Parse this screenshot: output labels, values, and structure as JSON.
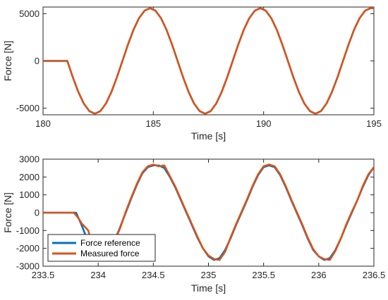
{
  "chart_data": [
    {
      "type": "line",
      "xlabel": "Time [s]",
      "ylabel": "Force [N]",
      "xlim": [
        180,
        195
      ],
      "ylim": [
        -5700,
        5700
      ],
      "xticks": [
        "180",
        "185",
        "190",
        "195"
      ],
      "yticks": [
        "-5000",
        "0",
        "5000"
      ],
      "grid": false,
      "legend": null,
      "series": [
        {
          "name": "Force reference",
          "color": "#0072BD",
          "x": [
            180.0,
            181.0,
            181.1,
            181.35,
            181.6,
            181.85,
            182.1,
            182.35,
            182.6,
            182.85,
            183.1,
            183.35,
            183.6,
            183.85,
            184.1,
            184.35,
            184.6,
            184.85,
            185.1,
            185.35,
            185.6,
            185.85,
            186.1,
            186.35,
            186.6,
            186.85,
            187.1,
            187.35,
            187.6,
            187.85,
            188.1,
            188.35,
            188.6,
            188.85,
            189.1,
            189.35,
            189.6,
            189.85,
            190.1,
            190.35,
            190.6,
            190.85,
            191.1,
            191.35,
            191.6,
            191.85,
            192.1,
            192.35,
            192.6,
            192.85,
            193.1,
            193.35,
            193.6,
            193.85,
            194.1,
            194.35,
            194.6,
            194.85,
            195.0
          ],
          "y": [
            0,
            0,
            0,
            -1726,
            -3283,
            -4519,
            -5312,
            -5586,
            -5312,
            -4519,
            -3283,
            -1726,
            0,
            1726,
            3283,
            4519,
            5312,
            5586,
            5312,
            4519,
            3283,
            1726,
            0,
            -1726,
            -3283,
            -4519,
            -5312,
            -5586,
            -5312,
            -4519,
            -3283,
            -1726,
            0,
            1726,
            3283,
            4519,
            5312,
            5586,
            5312,
            4519,
            3283,
            1726,
            0,
            -1726,
            -3283,
            -4519,
            -5312,
            -5586,
            -5312,
            -4519,
            -3283,
            -1726,
            0,
            1726,
            3283,
            4519,
            5312,
            5586,
            5586
          ]
        },
        {
          "name": "Measured force",
          "color": "#D95319",
          "x": [
            180.0,
            181.0,
            181.1,
            181.35,
            181.6,
            181.85,
            182.1,
            182.35,
            182.6,
            182.85,
            183.1,
            183.35,
            183.6,
            183.85,
            184.1,
            184.35,
            184.6,
            184.85,
            185.1,
            185.35,
            185.6,
            185.85,
            186.1,
            186.35,
            186.6,
            186.85,
            187.1,
            187.35,
            187.6,
            187.85,
            188.1,
            188.35,
            188.6,
            188.85,
            189.1,
            189.35,
            189.6,
            189.85,
            190.1,
            190.35,
            190.6,
            190.85,
            191.1,
            191.35,
            191.6,
            191.85,
            192.1,
            192.35,
            192.6,
            192.85,
            193.1,
            193.35,
            193.6,
            193.85,
            194.1,
            194.35,
            194.6,
            194.85,
            195.0
          ],
          "y": [
            0,
            0,
            0,
            -1726,
            -3283,
            -4519,
            -5312,
            -5586,
            -5312,
            -4519,
            -3283,
            -1726,
            0,
            1726,
            3283,
            4519,
            5312,
            5586,
            5312,
            4519,
            3283,
            1726,
            0,
            -1726,
            -3283,
            -4519,
            -5312,
            -5586,
            -5312,
            -4519,
            -3283,
            -1726,
            0,
            1726,
            3283,
            4519,
            5312,
            5586,
            5312,
            4519,
            3283,
            1726,
            0,
            -1726,
            -3283,
            -4519,
            -5312,
            -5586,
            -5312,
            -4519,
            -3283,
            -1726,
            0,
            1726,
            3283,
            4519,
            5312,
            5586,
            5586
          ]
        }
      ]
    },
    {
      "type": "line",
      "xlabel": "Time [s]",
      "ylabel": "Force [N]",
      "xlim": [
        233.5,
        236.5
      ],
      "ylim": [
        -3000,
        3000
      ],
      "xticks": [
        "233.5",
        "234",
        "234.5",
        "235",
        "235.5",
        "236",
        "236.5"
      ],
      "yticks": [
        "-3000",
        "-2000",
        "-1000",
        "0",
        "1000",
        "2000",
        "3000"
      ],
      "grid": false,
      "legend": "bottom-left",
      "series": [
        {
          "name": "Force reference",
          "color": "#0072BD",
          "x": [
            233.5,
            233.8,
            233.85,
            233.9,
            233.95,
            234.0,
            234.05,
            234.1,
            234.15,
            234.2,
            234.25,
            234.3,
            234.35,
            234.4,
            234.45,
            234.5,
            234.55,
            234.6,
            234.65,
            234.7,
            234.75,
            234.8,
            234.85,
            234.9,
            234.95,
            235.0,
            235.05,
            235.1,
            235.15,
            235.2,
            235.25,
            235.3,
            235.35,
            235.4,
            235.45,
            235.5,
            235.55,
            235.6,
            235.65,
            235.7,
            235.75,
            235.8,
            235.85,
            235.9,
            235.95,
            236.0,
            236.05,
            236.1,
            236.15,
            236.2,
            236.25,
            236.3,
            236.35,
            236.4,
            236.45,
            236.5
          ],
          "y": [
            0,
            0,
            -700,
            -1500,
            -2300,
            -2600,
            -2550,
            -2200,
            -1550,
            -800,
            0,
            800,
            1550,
            2200,
            2550,
            2650,
            2650,
            2500,
            2000,
            1400,
            700,
            0,
            -700,
            -1400,
            -2000,
            -2450,
            -2650,
            -2550,
            -2100,
            -1450,
            -700,
            0,
            700,
            1450,
            2100,
            2550,
            2650,
            2550,
            2100,
            1450,
            700,
            0,
            -700,
            -1450,
            -2100,
            -2450,
            -2650,
            -2550,
            -2100,
            -1450,
            -700,
            0,
            700,
            1450,
            2100,
            2550
          ]
        },
        {
          "name": "Measured force",
          "color": "#D95319",
          "x": [
            233.5,
            233.78,
            233.82,
            233.85,
            233.88,
            233.91,
            233.95,
            234.0,
            234.05,
            234.1,
            234.15,
            234.2,
            234.25,
            234.3,
            234.35,
            234.4,
            234.45,
            234.5,
            234.55,
            234.6,
            234.65,
            234.7,
            234.75,
            234.8,
            234.85,
            234.9,
            234.95,
            235.0,
            235.05,
            235.1,
            235.15,
            235.2,
            235.25,
            235.3,
            235.35,
            235.4,
            235.45,
            235.5,
            235.55,
            235.6,
            235.65,
            235.7,
            235.75,
            235.8,
            235.85,
            235.9,
            235.95,
            236.0,
            236.05,
            236.1,
            236.15,
            236.2,
            236.25,
            236.3,
            236.35,
            236.4,
            236.45,
            236.5
          ],
          "y": [
            0,
            0,
            -300,
            -600,
            -800,
            -1000,
            -1900,
            -2500,
            -2650,
            -2300,
            -1600,
            -850,
            50,
            850,
            1600,
            2250,
            2600,
            2700,
            2600,
            2650,
            2050,
            1450,
            750,
            50,
            -650,
            -1350,
            -2000,
            -2400,
            -2600,
            -2650,
            -2200,
            -1400,
            -650,
            50,
            750,
            1500,
            2150,
            2600,
            2700,
            2600,
            2150,
            1500,
            750,
            50,
            -650,
            -1400,
            -2050,
            -2450,
            -2600,
            -2650,
            -2150,
            -1450,
            -650,
            50,
            700,
            1500,
            2150,
            2550
          ]
        }
      ]
    }
  ]
}
